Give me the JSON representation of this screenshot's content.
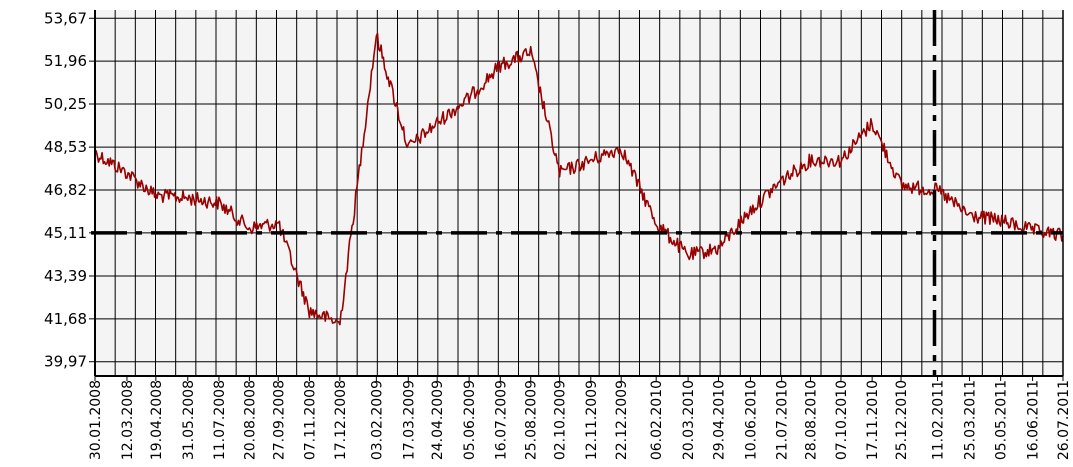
{
  "chart_data": {
    "type": "line",
    "title": "",
    "xlabel": "",
    "ylabel": "",
    "ylim": [
      39.4,
      54.0
    ],
    "ytick_labels": [
      "53,67",
      "51,96",
      "50,25",
      "48,53",
      "46,82",
      "45,11",
      "43,39",
      "41,68",
      "39,97"
    ],
    "ytick_values": [
      53.67,
      51.96,
      50.25,
      48.53,
      46.82,
      45.11,
      43.39,
      41.68,
      39.97
    ],
    "xtick_labels": [
      "30.01.2008",
      "12.03.2008",
      "19.04.2008",
      "31.05.2008",
      "11.07.2008",
      "20.08.2008",
      "27.09.2008",
      "07.11.2008",
      "17.12.2008",
      "03.02.2009",
      "17.03.2009",
      "24.04.2009",
      "05.06.2009",
      "16.07.2009",
      "25.08.2009",
      "02.10.2009",
      "12.11.2009",
      "22.12.2009",
      "06.02.2010",
      "20.03.2010",
      "29.04.2010",
      "10.06.2010",
      "21.07.2010",
      "28.08.2010",
      "07.10.2010",
      "17.11.2010",
      "25.12.2010",
      "11.02.2011",
      "25.03.2011",
      "05.05.2011",
      "16.06.2011",
      "26.07.2011"
    ],
    "grid": true,
    "line_color": "#990000",
    "reference_line_y": 45.11,
    "reference_line_x": "07.02.2011",
    "series": [
      {
        "x": [
          "30.01.2008",
          "12.03.2008",
          "19.04.2008",
          "31.05.2008",
          "11.07.2008",
          "20.08.2008",
          "27.09.2008",
          "07.11.2008",
          "17.12.2008",
          "03.02.2009",
          "17.03.2009",
          "24.04.2009",
          "05.06.2009",
          "16.07.2009",
          "25.08.2009",
          "02.10.2009",
          "12.11.2009",
          "22.12.2009",
          "06.02.2010",
          "20.03.2010",
          "29.04.2010",
          "10.06.2010",
          "21.07.2010",
          "28.08.2010",
          "07.10.2010",
          "17.11.2010",
          "25.12.2010",
          "11.02.2011",
          "25.03.2011",
          "05.05.2011",
          "16.06.2011",
          "26.07.2011"
        ],
        "values": [
          48.3,
          47.5,
          46.6,
          46.5,
          46.3,
          45.3,
          45.5,
          42.0,
          41.5,
          53.0,
          48.5,
          49.5,
          50.5,
          51.8,
          52.3,
          47.5,
          48.0,
          48.5,
          45.5,
          44.2,
          44.5,
          46.0,
          47.2,
          48.0,
          48.0,
          49.5,
          47.0,
          46.8,
          45.8,
          45.6,
          45.2,
          45.0
        ]
      }
    ]
  }
}
